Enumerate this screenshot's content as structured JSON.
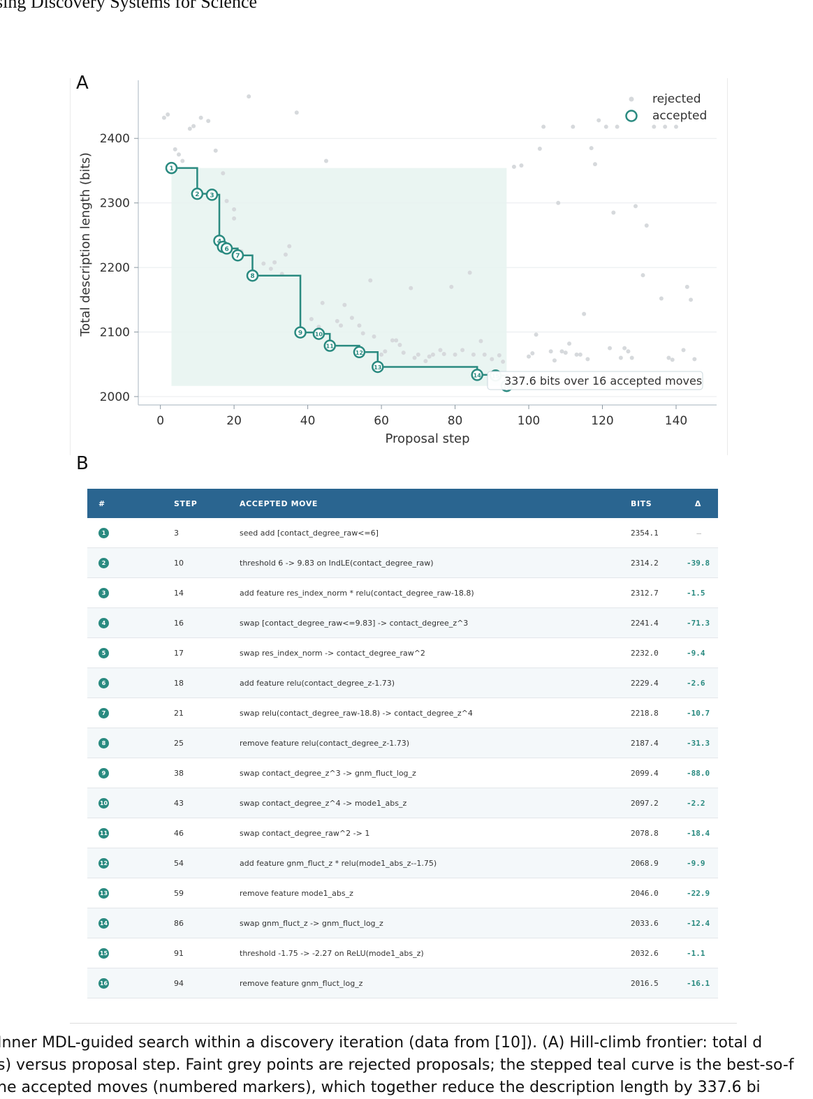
{
  "header": {
    "running_title": "sing Discovery Systems for Science"
  },
  "panel_a": {
    "label": "A"
  },
  "panel_b": {
    "label": "B"
  },
  "colors": {
    "teal": "#2a8a80",
    "rejected": "#d6d9dc",
    "fill": "#e6f3f0",
    "table_header": "#2a6590"
  },
  "chart_data": {
    "type": "scatter",
    "xlabel": "Proposal step",
    "ylabel": "Total description length (bits)",
    "xlim": [
      -6,
      151
    ],
    "ylim": [
      1987,
      2490
    ],
    "xticks": [
      0,
      20,
      40,
      60,
      80,
      100,
      120,
      140
    ],
    "yticks": [
      2000,
      2100,
      2200,
      2300,
      2400
    ],
    "grid": "horizontal",
    "legend": {
      "placement": "top-right",
      "entries": [
        "rejected",
        "accepted"
      ]
    },
    "annotation": "337.6 bits over 16 accepted moves",
    "rejected": [
      [
        1,
        2432
      ],
      [
        2,
        2437
      ],
      [
        4,
        2383
      ],
      [
        5,
        2375
      ],
      [
        6,
        2365
      ],
      [
        8,
        2415
      ],
      [
        9,
        2419
      ],
      [
        11,
        2432
      ],
      [
        13,
        2427
      ],
      [
        15,
        2381
      ],
      [
        17,
        2346
      ],
      [
        20,
        2276
      ],
      [
        22,
        2225
      ],
      [
        24,
        2465
      ],
      [
        28,
        2206
      ],
      [
        30,
        2198
      ],
      [
        31,
        2208
      ],
      [
        33,
        2190
      ],
      [
        34,
        2220
      ],
      [
        35,
        2233
      ],
      [
        37,
        2440
      ],
      [
        41,
        2120
      ],
      [
        43,
        2108
      ],
      [
        44,
        2145
      ],
      [
        45,
        2365
      ],
      [
        48,
        2117
      ],
      [
        49,
        2110
      ],
      [
        50,
        2142
      ],
      [
        52,
        2122
      ],
      [
        54,
        2110
      ],
      [
        55,
        2098
      ],
      [
        57,
        2180
      ],
      [
        58,
        2093
      ],
      [
        60,
        2065
      ],
      [
        61,
        2070
      ],
      [
        63,
        2087
      ],
      [
        64,
        2087
      ],
      [
        65,
        2080
      ],
      [
        66,
        2068
      ],
      [
        68,
        2168
      ],
      [
        69,
        2060
      ],
      [
        70,
        2065
      ],
      [
        72,
        2055
      ],
      [
        73,
        2062
      ],
      [
        74,
        2065
      ],
      [
        76,
        2072
      ],
      [
        77,
        2066
      ],
      [
        79,
        2170
      ],
      [
        80,
        2065
      ],
      [
        82,
        2072
      ],
      [
        84,
        2192
      ],
      [
        85,
        2065
      ],
      [
        87,
        2086
      ],
      [
        88,
        2065
      ],
      [
        90,
        2058
      ],
      [
        92,
        2064
      ],
      [
        93,
        2054
      ],
      [
        96,
        2356
      ],
      [
        98,
        2358
      ],
      [
        100,
        2062
      ],
      [
        101,
        2067
      ],
      [
        102,
        2096
      ],
      [
        103,
        2384
      ],
      [
        104,
        2418
      ],
      [
        106,
        2070
      ],
      [
        107,
        2056
      ],
      [
        108,
        2300
      ],
      [
        109,
        2070
      ],
      [
        110,
        2068
      ],
      [
        111,
        2082
      ],
      [
        112,
        2418
      ],
      [
        113,
        2065
      ],
      [
        114,
        2065
      ],
      [
        115,
        2128
      ],
      [
        116,
        2058
      ],
      [
        117,
        2385
      ],
      [
        118,
        2360
      ],
      [
        119,
        2428
      ],
      [
        121,
        2418
      ],
      [
        122,
        2075
      ],
      [
        123,
        2285
      ],
      [
        124,
        2418
      ],
      [
        125,
        2060
      ],
      [
        126,
        2075
      ],
      [
        127,
        2070
      ],
      [
        128,
        2060
      ],
      [
        129,
        2295
      ],
      [
        131,
        2188
      ],
      [
        132,
        2265
      ],
      [
        134,
        2418
      ],
      [
        136,
        2152
      ],
      [
        137,
        2418
      ],
      [
        138,
        2060
      ],
      [
        139,
        2057
      ],
      [
        140,
        2418
      ],
      [
        142,
        2072
      ],
      [
        143,
        2170
      ],
      [
        144,
        2150
      ],
      [
        145,
        2058
      ],
      [
        20,
        2290
      ],
      [
        18,
        2303
      ]
    ],
    "accepted": [
      {
        "n": 1,
        "step": 3,
        "bits": 2354.1
      },
      {
        "n": 2,
        "step": 10,
        "bits": 2314.2
      },
      {
        "n": 3,
        "step": 14,
        "bits": 2312.7
      },
      {
        "n": 4,
        "step": 16,
        "bits": 2241.4
      },
      {
        "n": 5,
        "step": 17,
        "bits": 2232.0
      },
      {
        "n": 6,
        "step": 18,
        "bits": 2229.4
      },
      {
        "n": 7,
        "step": 21,
        "bits": 2218.8
      },
      {
        "n": 8,
        "step": 25,
        "bits": 2187.4
      },
      {
        "n": 9,
        "step": 38,
        "bits": 2099.4
      },
      {
        "n": 10,
        "step": 43,
        "bits": 2097.2
      },
      {
        "n": 11,
        "step": 46,
        "bits": 2078.8
      },
      {
        "n": 12,
        "step": 54,
        "bits": 2068.9
      },
      {
        "n": 13,
        "step": 59,
        "bits": 2046.0
      },
      {
        "n": 14,
        "step": 86,
        "bits": 2033.6
      },
      {
        "n": 15,
        "step": 91,
        "bits": 2032.6
      },
      {
        "n": 16,
        "step": 94,
        "bits": 2016.5
      }
    ]
  },
  "table": {
    "headers": {
      "num": "#",
      "step": "STEP",
      "move": "ACCEPTED MOVE",
      "bits": "BITS",
      "delta": "Δ"
    },
    "rows": [
      {
        "num": "1",
        "step": "3",
        "move": "seed add [contact_degree_raw<=6]",
        "bits": "2354.1",
        "delta": "–"
      },
      {
        "num": "2",
        "step": "10",
        "move": "threshold 6 -> 9.83 on IndLE(contact_degree_raw)",
        "bits": "2314.2",
        "delta": "-39.8"
      },
      {
        "num": "3",
        "step": "14",
        "move": "add feature res_index_norm * relu(contact_degree_raw-18.8)",
        "bits": "2312.7",
        "delta": "-1.5"
      },
      {
        "num": "4",
        "step": "16",
        "move": "swap [contact_degree_raw<=9.83] -> contact_degree_z^3",
        "bits": "2241.4",
        "delta": "-71.3"
      },
      {
        "num": "5",
        "step": "17",
        "move": "swap res_index_norm -> contact_degree_raw^2",
        "bits": "2232.0",
        "delta": "-9.4"
      },
      {
        "num": "6",
        "step": "18",
        "move": "add feature relu(contact_degree_z-1.73)",
        "bits": "2229.4",
        "delta": "-2.6"
      },
      {
        "num": "7",
        "step": "21",
        "move": "swap relu(contact_degree_raw-18.8) -> contact_degree_z^4",
        "bits": "2218.8",
        "delta": "-10.7"
      },
      {
        "num": "8",
        "step": "25",
        "move": "remove feature relu(contact_degree_z-1.73)",
        "bits": "2187.4",
        "delta": "-31.3"
      },
      {
        "num": "9",
        "step": "38",
        "move": "swap contact_degree_z^3 -> gnm_fluct_log_z",
        "bits": "2099.4",
        "delta": "-88.0"
      },
      {
        "num": "10",
        "step": "43",
        "move": "swap contact_degree_z^4 -> mode1_abs_z",
        "bits": "2097.2",
        "delta": "-2.2"
      },
      {
        "num": "11",
        "step": "46",
        "move": "swap contact_degree_raw^2 -> 1",
        "bits": "2078.8",
        "delta": "-18.4"
      },
      {
        "num": "12",
        "step": "54",
        "move": "add feature gnm_fluct_z * relu(mode1_abs_z--1.75)",
        "bits": "2068.9",
        "delta": "-9.9"
      },
      {
        "num": "13",
        "step": "59",
        "move": "remove feature mode1_abs_z",
        "bits": "2046.0",
        "delta": "-22.9"
      },
      {
        "num": "14",
        "step": "86",
        "move": "swap gnm_fluct_z -> gnm_fluct_log_z",
        "bits": "2033.6",
        "delta": "-12.4"
      },
      {
        "num": "15",
        "step": "91",
        "move": "threshold -1.75 -> -2.27 on ReLU(mode1_abs_z)",
        "bits": "2032.6",
        "delta": "-1.1"
      },
      {
        "num": "16",
        "step": "94",
        "move": "remove feature gnm_fluct_log_z",
        "bits": "2016.5",
        "delta": "-16.1"
      }
    ]
  },
  "caption": {
    "line1": "Inner MDL-guided search within a discovery iteration (data from [10]). (A) Hill-climb frontier: total d",
    "line2": "s) versus proposal step. Faint grey points are rejected proposals; the stepped teal curve is the best-so-f",
    "line3": "he accepted moves (numbered markers), which together reduce the description length by 337.6 bi"
  }
}
